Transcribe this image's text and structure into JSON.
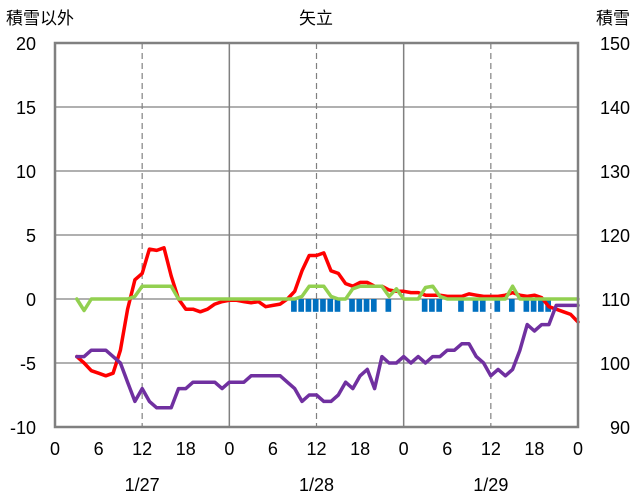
{
  "chart_data": {
    "type": "line",
    "title": "矢立",
    "left_axis_title": "積雪以外",
    "right_axis_title": "積雪",
    "ylim_left": [
      -10,
      20
    ],
    "ylim_right": [
      90,
      150
    ],
    "yticks_left": [
      "20",
      "15",
      "10",
      "5",
      "0",
      "-5",
      "-10"
    ],
    "yticks_right": [
      "150",
      "140",
      "130",
      "120",
      "110",
      "100",
      "90"
    ],
    "xlim": [
      0,
      72
    ],
    "xticks": [
      "0",
      "6",
      "12",
      "18",
      "0",
      "6",
      "12",
      "18",
      "0",
      "6",
      "12",
      "18",
      "0"
    ],
    "dates": [
      "1/27",
      "1/28",
      "1/29"
    ],
    "grid": true,
    "colors": {
      "red": "#ff0000",
      "green": "#92d050",
      "purple": "#7030a0",
      "blue": "#0070c0",
      "frame": "#808080"
    },
    "series": [
      {
        "axis": "left",
        "color": "#ff0000",
        "x": [
          3,
          4,
          5,
          6,
          7,
          8,
          9,
          10,
          11,
          12,
          13,
          14,
          15,
          16,
          17,
          18,
          19,
          20,
          21,
          22,
          23,
          24,
          25,
          26,
          27,
          28,
          29,
          30,
          31,
          32,
          33,
          34,
          35,
          36,
          37,
          38,
          39,
          40,
          41,
          42,
          43,
          44,
          45,
          46,
          47,
          48,
          49,
          50,
          51,
          52,
          53,
          54,
          55,
          56,
          57,
          58,
          59,
          60,
          61,
          62,
          63,
          64,
          65,
          66,
          67,
          68,
          69,
          70,
          71,
          72
        ],
        "y": [
          -4.5,
          -5,
          -5.6,
          -5.8,
          -6,
          -5.8,
          -4,
          -0.8,
          1.5,
          2,
          3.9,
          3.8,
          4,
          1.8,
          0,
          -0.8,
          -0.8,
          -1,
          -0.8,
          -0.4,
          -0.2,
          -0.1,
          -0.1,
          -0.2,
          -0.3,
          -0.2,
          -0.6,
          -0.5,
          -0.4,
          0,
          0.6,
          2.2,
          3.4,
          3.4,
          3.6,
          2.2,
          2,
          1.2,
          1,
          1.3,
          1.3,
          1,
          1,
          0.7,
          0.6,
          0.6,
          0.5,
          0.5,
          0.3,
          0.3,
          0.3,
          0.2,
          0.2,
          0.2,
          0.4,
          0.3,
          0.2,
          0.2,
          0.2,
          0.3,
          0.5,
          0.3,
          0.2,
          0.3,
          0.1,
          -0.6,
          -0.8,
          -1,
          -1.2,
          -1.8
        ]
      },
      {
        "axis": "left",
        "color": "#92d050",
        "x": [
          3,
          4,
          5,
          6,
          7,
          8,
          9,
          10,
          11,
          12,
          13,
          14,
          15,
          16,
          17,
          18,
          19,
          20,
          21,
          22,
          23,
          24,
          25,
          26,
          27,
          28,
          29,
          30,
          31,
          32,
          33,
          34,
          35,
          36,
          37,
          38,
          39,
          40,
          41,
          42,
          43,
          44,
          45,
          46,
          47,
          48,
          49,
          50,
          51,
          52,
          53,
          54,
          55,
          56,
          57,
          58,
          59,
          60,
          61,
          62,
          63,
          64,
          65,
          66,
          67,
          68,
          69,
          70,
          71,
          72
        ],
        "y": [
          0,
          -0.9,
          0,
          0,
          0,
          0,
          0,
          0,
          0.2,
          1,
          1,
          1,
          1,
          1,
          0,
          0,
          0,
          0,
          0,
          0,
          0,
          0,
          0,
          0,
          0,
          0,
          0,
          0,
          0,
          0,
          0,
          0.2,
          1,
          1,
          1,
          0.2,
          0,
          0,
          0.8,
          1,
          1,
          1,
          1,
          0.2,
          0.8,
          0,
          0,
          0,
          0.9,
          1,
          0.2,
          0,
          0,
          0,
          0,
          0,
          0,
          0,
          0,
          0,
          1,
          0,
          0,
          0,
          0,
          0,
          0,
          0,
          0,
          0
        ]
      },
      {
        "axis": "right",
        "color": "#7030a0",
        "x": [
          3,
          4,
          5,
          6,
          7,
          8,
          9,
          10,
          11,
          12,
          13,
          14,
          15,
          16,
          17,
          18,
          19,
          20,
          21,
          22,
          23,
          24,
          25,
          26,
          27,
          28,
          29,
          30,
          31,
          32,
          33,
          34,
          35,
          36,
          37,
          38,
          39,
          40,
          41,
          42,
          43,
          44,
          45,
          46,
          47,
          48,
          49,
          50,
          51,
          52,
          53,
          54,
          55,
          56,
          57,
          58,
          59,
          60,
          61,
          62,
          63,
          64,
          65,
          66,
          67,
          68,
          69,
          70,
          71,
          72
        ],
        "y": [
          101,
          101,
          102,
          102,
          102,
          101,
          100,
          97,
          94,
          96,
          94,
          93,
          93,
          93,
          96,
          96,
          97,
          97,
          97,
          97,
          96,
          97,
          97,
          97,
          98,
          98,
          98,
          98,
          98,
          97,
          96,
          94,
          95,
          95,
          94,
          94,
          95,
          97,
          96,
          98,
          99,
          96,
          101,
          100,
          100,
          101,
          100,
          101,
          100,
          101,
          101,
          102,
          102,
          103,
          103,
          101,
          100,
          98,
          99,
          98,
          99,
          102,
          106,
          105,
          106,
          106,
          109,
          109,
          109,
          109
        ]
      }
    ],
    "bars": {
      "axis": "left",
      "color": "#0070c0",
      "value": -1,
      "x": [
        33,
        34,
        35,
        36,
        37,
        38,
        39,
        41,
        42,
        43,
        44,
        46,
        51,
        52,
        53,
        56,
        58,
        59,
        61,
        63,
        65,
        66,
        67,
        68
      ]
    }
  }
}
